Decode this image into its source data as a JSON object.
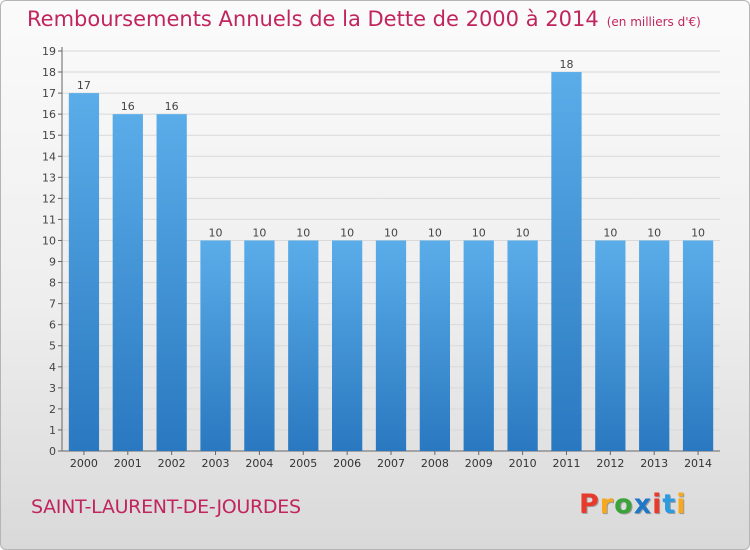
{
  "chart_data": {
    "type": "bar",
    "title": "Remboursements Annuels de la Dette de 2000 à 2014",
    "unit_label": "(en milliers d'€)",
    "categories": [
      "2000",
      "2001",
      "2002",
      "2003",
      "2004",
      "2005",
      "2006",
      "2007",
      "2008",
      "2009",
      "2010",
      "2011",
      "2012",
      "2013",
      "2014"
    ],
    "values": [
      17,
      16,
      16,
      10,
      10,
      10,
      10,
      10,
      10,
      10,
      10,
      18,
      10,
      10,
      10
    ],
    "ylim": [
      0,
      19
    ],
    "yticks": [
      0,
      1,
      2,
      3,
      4,
      5,
      6,
      7,
      8,
      9,
      10,
      11,
      12,
      13,
      14,
      15,
      16,
      17,
      18,
      19
    ],
    "grid": true,
    "bar_color": "#3c8fd6"
  },
  "footer": {
    "commune": "SAINT-LAURENT-DE-JOURDES",
    "logo_text": "Proxiti",
    "logo_colors": [
      "#e8392b",
      "#f7a81b",
      "#3aa43a",
      "#1e78c8",
      "#e8392b",
      "#2a9be0",
      "#f7a81b"
    ]
  }
}
